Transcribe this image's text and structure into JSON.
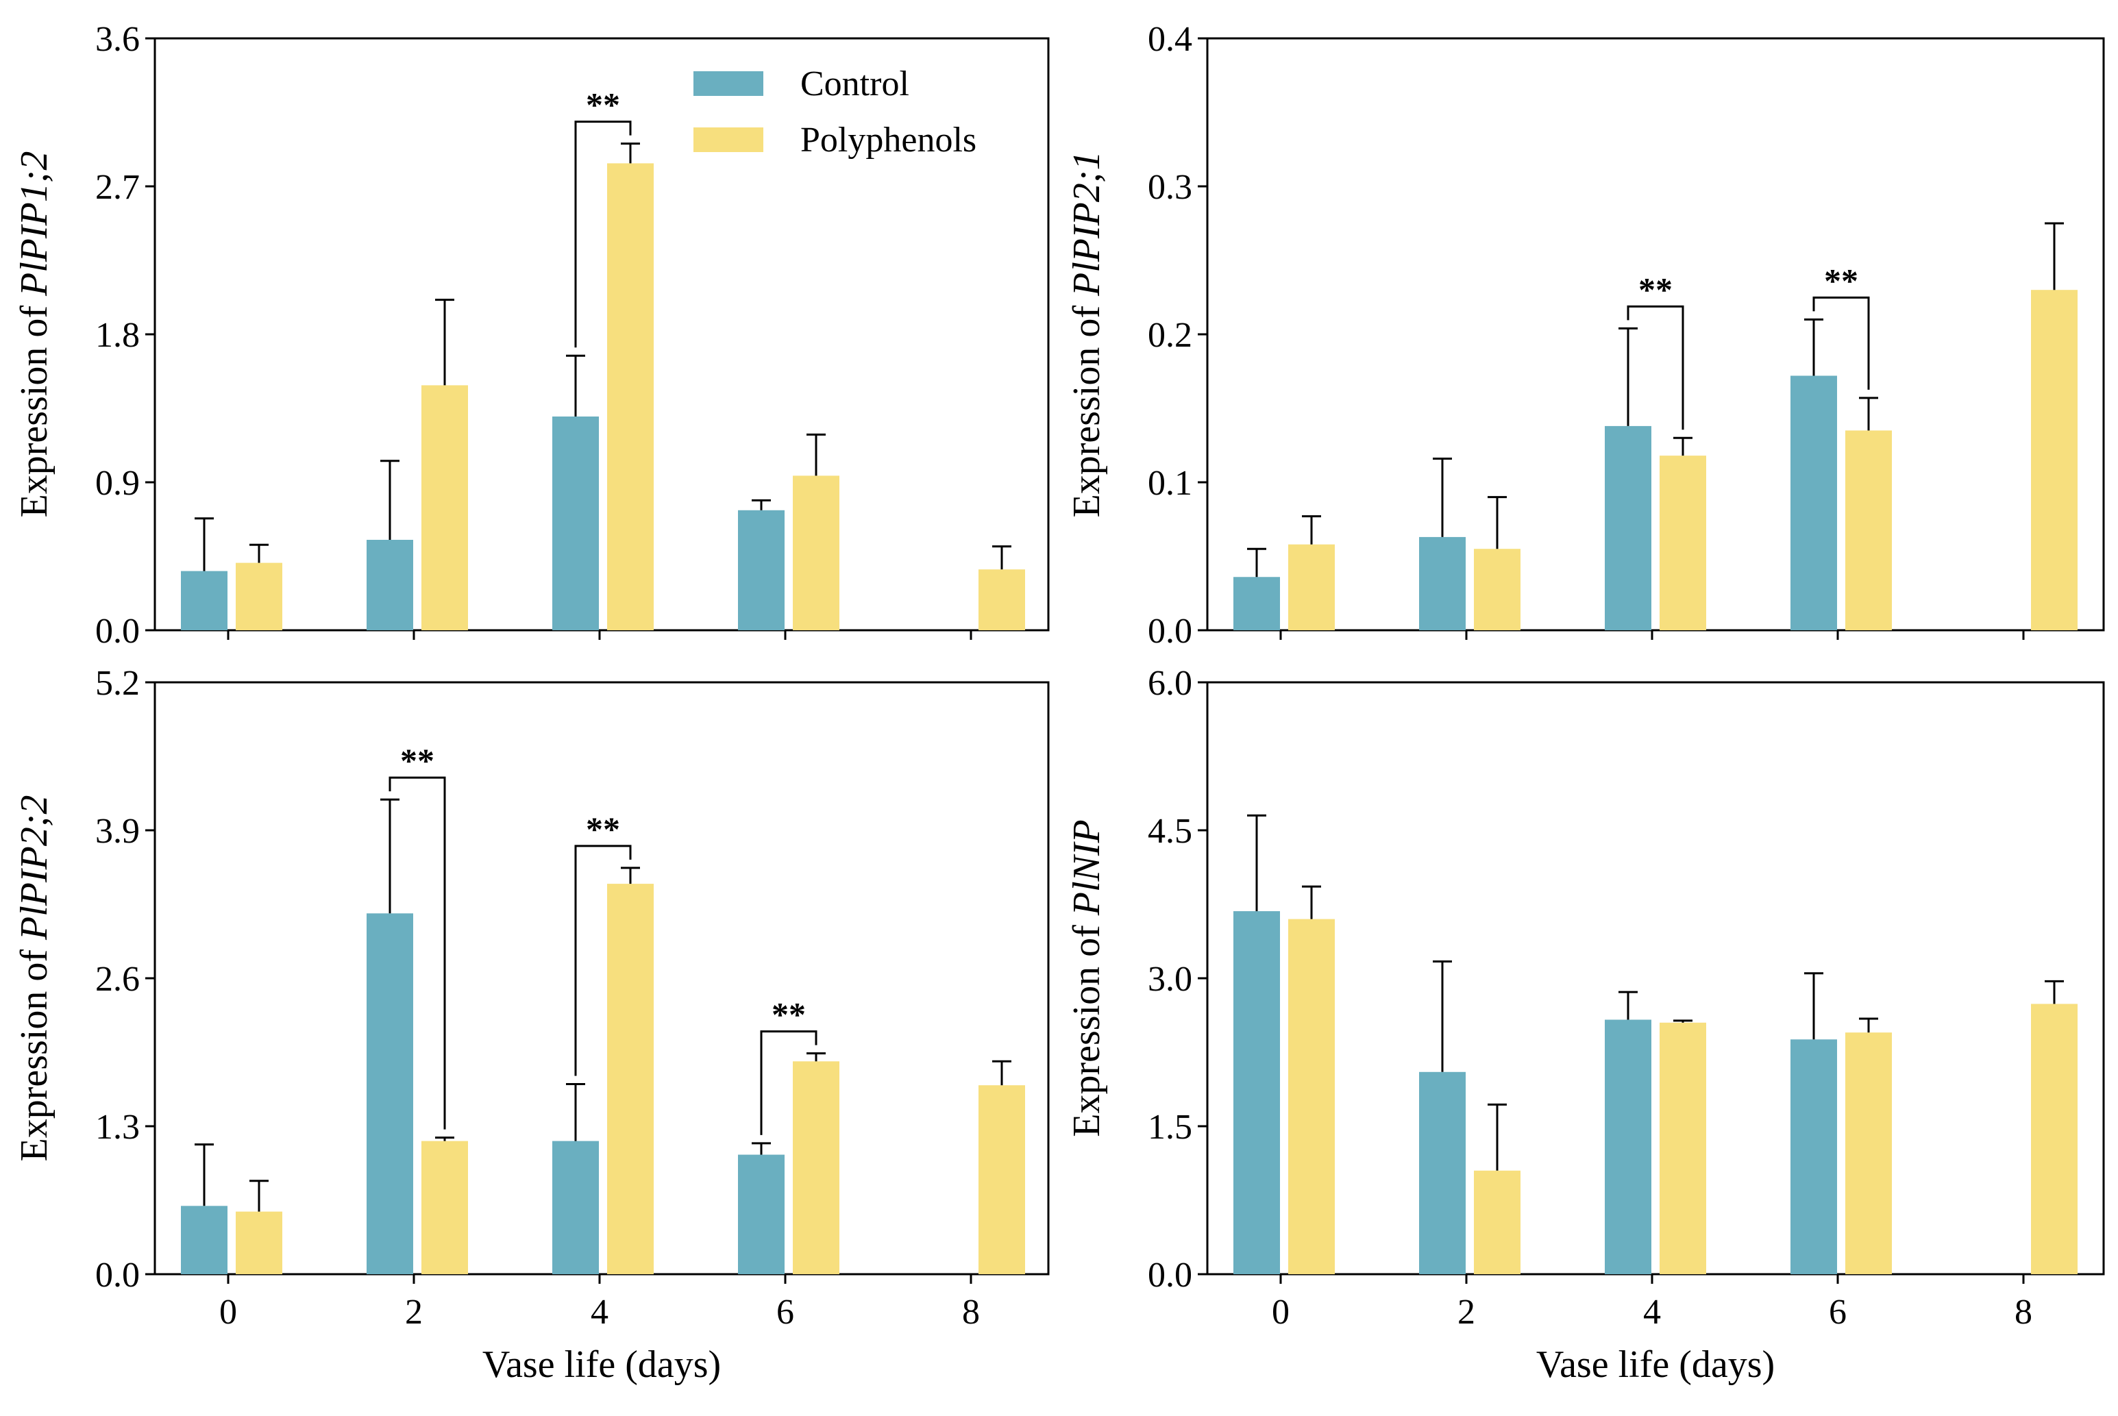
{
  "figure": {
    "legend": [
      {
        "name": "Control",
        "color": "#6aafc0"
      },
      {
        "name": "Polyphenols",
        "color": "#f7df7e"
      }
    ]
  },
  "chart_data": [
    {
      "type": "bar",
      "panel": "top-left",
      "ylabel_prefix": "Expression of ",
      "gene": "PlPIP1;2",
      "xlabel": "",
      "categories": [
        "0",
        "2",
        "4",
        "6",
        "8"
      ],
      "ylim": [
        0,
        3.6
      ],
      "yticks": [
        "0.0",
        "0.9",
        "1.8",
        "2.7",
        "3.6"
      ],
      "legend_position": "top-right",
      "series": [
        {
          "name": "Control",
          "values": [
            0.36,
            0.55,
            1.3,
            0.73,
            null
          ],
          "errors": [
            0.32,
            0.48,
            0.37,
            0.06,
            null
          ]
        },
        {
          "name": "Polyphenols",
          "values": [
            0.41,
            1.49,
            2.84,
            0.94,
            0.37
          ],
          "errors": [
            0.11,
            0.52,
            0.12,
            0.25,
            0.14
          ]
        }
      ],
      "significance": [
        {
          "category": "4",
          "label": "**"
        }
      ]
    },
    {
      "type": "bar",
      "panel": "top-right",
      "ylabel_prefix": "Expression of ",
      "gene": "PlPIP2;1",
      "xlabel": "",
      "categories": [
        "0",
        "2",
        "4",
        "6",
        "8"
      ],
      "ylim": [
        0,
        0.4
      ],
      "yticks": [
        "0.0",
        "0.1",
        "0.2",
        "0.3",
        "0.4"
      ],
      "series": [
        {
          "name": "Control",
          "values": [
            0.036,
            0.063,
            0.138,
            0.172,
            null
          ],
          "errors": [
            0.019,
            0.053,
            0.066,
            0.038,
            null
          ]
        },
        {
          "name": "Polyphenols",
          "values": [
            0.058,
            0.055,
            0.118,
            0.135,
            0.23
          ],
          "errors": [
            0.019,
            0.035,
            0.012,
            0.022,
            0.045
          ]
        }
      ],
      "significance": [
        {
          "category": "4",
          "label": "**"
        },
        {
          "category": "6",
          "label": "**"
        }
      ]
    },
    {
      "type": "bar",
      "panel": "bottom-left",
      "ylabel_prefix": "Expression of ",
      "gene": "PlPIP2;2",
      "xlabel": "Vase life (days)",
      "categories": [
        "0",
        "2",
        "4",
        "6",
        "8"
      ],
      "ylim": [
        0,
        5.2
      ],
      "yticks": [
        "0.0",
        "1.3",
        "2.6",
        "3.9",
        "5.2"
      ],
      "series": [
        {
          "name": "Control",
          "values": [
            0.6,
            3.17,
            1.17,
            1.05,
            null
          ],
          "errors": [
            0.54,
            1.0,
            0.5,
            0.1,
            null
          ]
        },
        {
          "name": "Polyphenols",
          "values": [
            0.55,
            1.17,
            3.43,
            1.87,
            1.66
          ],
          "errors": [
            0.27,
            0.03,
            0.14,
            0.07,
            0.21
          ]
        }
      ],
      "significance": [
        {
          "category": "2",
          "label": "**"
        },
        {
          "category": "4",
          "label": "**"
        },
        {
          "category": "6",
          "label": "**"
        }
      ]
    },
    {
      "type": "bar",
      "panel": "bottom-right",
      "ylabel_prefix": "Expression of ",
      "gene": "PlNIP",
      "xlabel": "Vase life (days)",
      "categories": [
        "0",
        "2",
        "4",
        "6",
        "8"
      ],
      "ylim": [
        0,
        6.0
      ],
      "yticks": [
        "0.0",
        "1.5",
        "3.0",
        "4.5",
        "6.0"
      ],
      "series": [
        {
          "name": "Control",
          "values": [
            3.68,
            2.05,
            2.58,
            2.38,
            null
          ],
          "errors": [
            0.97,
            1.12,
            0.28,
            0.67,
            null
          ]
        },
        {
          "name": "Polyphenols",
          "values": [
            3.6,
            1.05,
            2.55,
            2.45,
            2.74
          ],
          "errors": [
            0.33,
            0.67,
            0.02,
            0.14,
            0.23
          ]
        }
      ],
      "significance": []
    }
  ]
}
